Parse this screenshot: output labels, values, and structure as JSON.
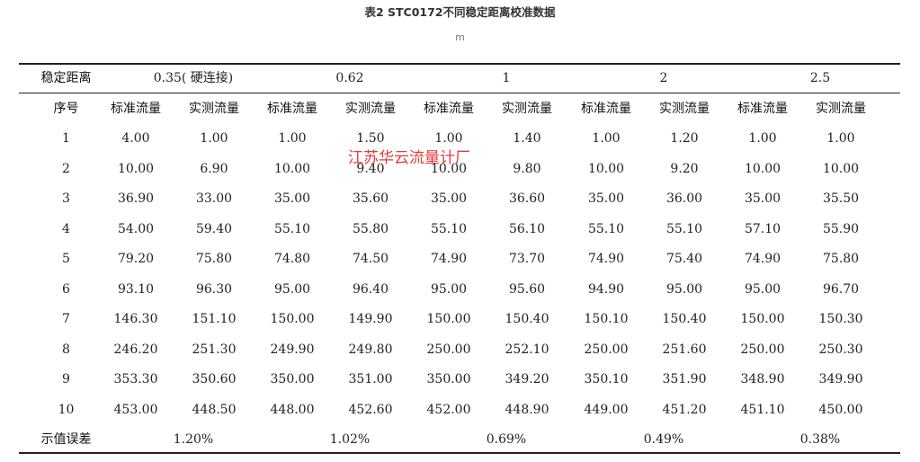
{
  "caption": "表2 STC0172不同稳定距离校准数据",
  "unit": "m",
  "header": {
    "label": "稳定距离",
    "distances": [
      "0.35( 硬连接)",
      "0.62",
      "1",
      "2",
      "2.5"
    ]
  },
  "subheader": {
    "label": "序号",
    "columns": [
      "标准流量",
      "实测流量",
      "标准流量",
      "实测流量",
      "标准流量",
      "实测流量",
      "标准流量",
      "实测流量",
      "标准流量",
      "实测流量"
    ]
  },
  "rows": [
    {
      "no": "1",
      "values": [
        "4.00",
        "1.00",
        "1.00",
        "1.50",
        "1.00",
        "1.40",
        "1.00",
        "1.20",
        "1.00",
        "1.00"
      ]
    },
    {
      "no": "2",
      "values": [
        "10.00",
        "6.90",
        "10.00",
        "9.40",
        "10.00",
        "9.80",
        "10.00",
        "9.20",
        "10.00",
        "10.00"
      ]
    },
    {
      "no": "3",
      "values": [
        "36.90",
        "33.00",
        "35.00",
        "35.60",
        "35.00",
        "36.60",
        "35.00",
        "36.00",
        "35.00",
        "35.50"
      ]
    },
    {
      "no": "4",
      "values": [
        "54.00",
        "59.40",
        "55.10",
        "55.80",
        "55.10",
        "56.10",
        "55.10",
        "55.10",
        "57.10",
        "55.90"
      ]
    },
    {
      "no": "5",
      "values": [
        "79.20",
        "75.80",
        "74.80",
        "74.50",
        "74.90",
        "73.70",
        "74.90",
        "75.40",
        "74.90",
        "75.80"
      ]
    },
    {
      "no": "6",
      "values": [
        "93.10",
        "96.30",
        "95.00",
        "96.40",
        "95.00",
        "95.60",
        "94.90",
        "95.00",
        "95.00",
        "96.70"
      ]
    },
    {
      "no": "7",
      "values": [
        "146.30",
        "151.10",
        "150.00",
        "149.90",
        "150.00",
        "150.40",
        "150.10",
        "150.40",
        "150.00",
        "150.30"
      ]
    },
    {
      "no": "8",
      "values": [
        "246.20",
        "251.30",
        "249.90",
        "249.80",
        "250.00",
        "252.10",
        "250.00",
        "251.60",
        "250.00",
        "250.30"
      ]
    },
    {
      "no": "9",
      "values": [
        "353.30",
        "350.60",
        "350.00",
        "351.00",
        "350.00",
        "349.20",
        "350.10",
        "351.90",
        "348.90",
        "349.90"
      ]
    },
    {
      "no": "10",
      "values": [
        "453.00",
        "448.50",
        "448.00",
        "452.60",
        "452.00",
        "448.90",
        "449.00",
        "451.20",
        "451.10",
        "450.00"
      ]
    }
  ],
  "error_row": {
    "label": "示值误差",
    "values": [
      "1.20%",
      "1.02%",
      "0.69%",
      "0.49%",
      "0.38%"
    ]
  },
  "watermark": "江苏华云流量计厂"
}
